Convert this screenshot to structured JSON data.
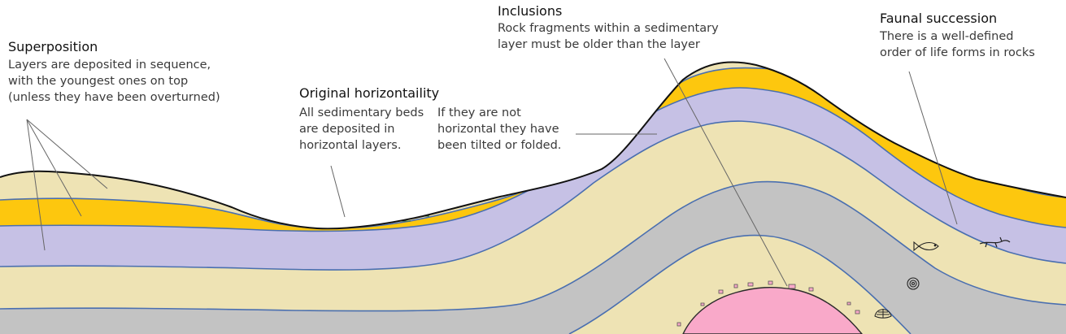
{
  "superposition": {
    "title": "Superposition",
    "lines": [
      "Layers are deposited in sequence,",
      "with the youngest ones on top",
      "(unless  they have been overturned)"
    ]
  },
  "horizontality": {
    "title": "Original horizontaility",
    "col1": [
      "All sedimentary beds",
      "are deposited in",
      "horizontal layers."
    ],
    "col2": [
      "If they are not",
      "horizontal they have",
      "been tilted or folded."
    ]
  },
  "inclusions": {
    "title": "Inclusions",
    "lines": [
      "Rock fragments within a sedimentary",
      "layer must be older than the layer"
    ]
  },
  "faunal": {
    "title": "Faunal succession",
    "lines": [
      "There is a well-defined",
      "order of life forms in rocks"
    ]
  },
  "colors": {
    "tan": "#eee3b4",
    "yellow": "#fdc70e",
    "lavender": "#c6c1e5",
    "gray": "#c3c3c3",
    "pink": "#f9a9c9",
    "green": "#33b447",
    "boundary": "#4a6fb0",
    "surface": "#111111"
  },
  "icons": [
    "fish-fossil-icon",
    "lizard-fossil-icon",
    "ammonite-fossil-icon",
    "shell-fossil-icon",
    "inclusion-fragments"
  ]
}
